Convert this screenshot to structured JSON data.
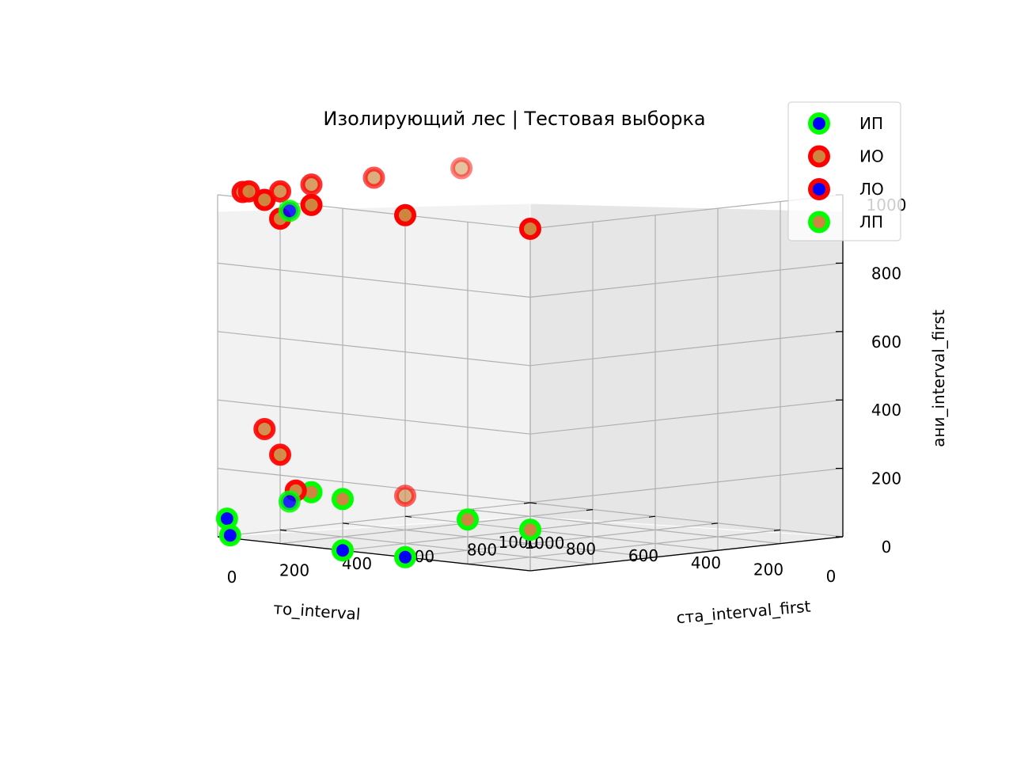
{
  "chart_data": {
    "type": "scatter3d",
    "title": "Изолирующий лес | Тестовая выборка",
    "axes": {
      "x": {
        "label": "то_interval",
        "ticks": [
          "0",
          "200",
          "400",
          "600",
          "800",
          "1000"
        ],
        "lim": [
          0,
          1000
        ]
      },
      "y": {
        "label": "ста_interval_first",
        "ticks": [
          "0",
          "200",
          "400",
          "600",
          "800",
          "1000"
        ],
        "lim": [
          0,
          1000
        ]
      },
      "z": {
        "label": "ани_interval_first",
        "ticks": [
          "0",
          "200",
          "400",
          "600",
          "800",
          "1000"
        ],
        "lim": [
          0,
          1000
        ]
      }
    },
    "grid": true,
    "legend_position": "top-right",
    "series": [
      {
        "name": "ИП",
        "edge_color": "#00ff00",
        "face_color": "#0000ff",
        "points": [
          {
            "x": 1000,
            "y": 230,
            "z": 930
          },
          {
            "x": 1000,
            "y": 230,
            "z": 80
          },
          {
            "x": 1000,
            "y": 30,
            "z": 50
          },
          {
            "x": 1000,
            "y": 40,
            "z": 0
          },
          {
            "x": 600,
            "y": 0,
            "z": 0
          },
          {
            "x": 400,
            "y": 0,
            "z": 0
          }
        ]
      },
      {
        "name": "ИО",
        "edge_color": "#ff0000",
        "face_color": "#cd853f",
        "points": [
          {
            "x": 0,
            "y": 0,
            "z": 1000
          },
          {
            "x": 400,
            "y": 0,
            "z": 1000
          },
          {
            "x": 700,
            "y": 0,
            "z": 1000
          },
          {
            "x": 1000,
            "y": 100,
            "z": 1000
          },
          {
            "x": 1000,
            "y": 200,
            "z": 990
          },
          {
            "x": 1000,
            "y": 500,
            "z": 1000
          },
          {
            "x": 1000,
            "y": 780,
            "z": 1000
          },
          {
            "x": 1000,
            "y": 600,
            "z": 60
          },
          {
            "x": 850,
            "y": 0,
            "z": 1000
          },
          {
            "x": 1000,
            "y": 80,
            "z": 1000
          },
          {
            "x": 900,
            "y": 100,
            "z": 930
          },
          {
            "x": 1000,
            "y": 300,
            "z": 1000
          },
          {
            "x": 1000,
            "y": 150,
            "z": 300
          },
          {
            "x": 950,
            "y": 150,
            "z": 230
          },
          {
            "x": 900,
            "y": 150,
            "z": 130
          }
        ]
      },
      {
        "name": "ЛО",
        "edge_color": "#ff0000",
        "face_color": "#0000ff",
        "points": []
      },
      {
        "name": "ЛП",
        "edge_color": "#00ff00",
        "face_color": "#cd853f",
        "points": [
          {
            "x": 0,
            "y": 0,
            "z": 120
          },
          {
            "x": 200,
            "y": 0,
            "z": 130
          },
          {
            "x": 600,
            "y": 0,
            "z": 150
          },
          {
            "x": 700,
            "y": 0,
            "z": 160
          }
        ]
      }
    ]
  }
}
